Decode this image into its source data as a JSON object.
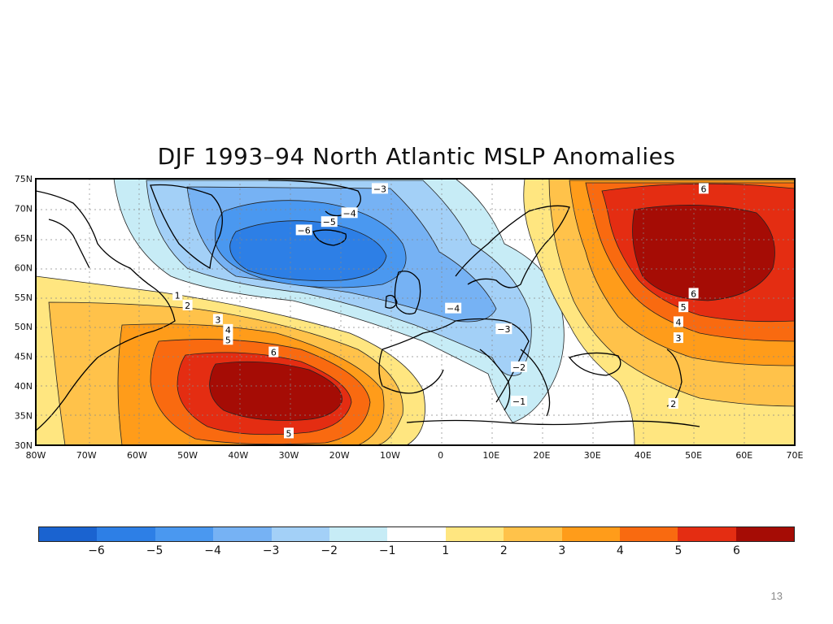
{
  "title": "DJF 1993–94 North Atlantic MSLP Anomalies",
  "lat_labels": [
    "75N",
    "70N",
    "65N",
    "60N",
    "55N",
    "50N",
    "45N",
    "40N",
    "35N",
    "30N"
  ],
  "lon_labels": [
    "80W",
    "70W",
    "60W",
    "50W",
    "40W",
    "30W",
    "20W",
    "10W",
    "0",
    "10E",
    "20E",
    "30E",
    "40E",
    "50E",
    "60E",
    "70E"
  ],
  "contour_labels": [
    {
      "text": "−3",
      "lon": -12,
      "lat": 73.3
    },
    {
      "text": "−4",
      "lon": -18,
      "lat": 69.2
    },
    {
      "text": "−5",
      "lon": -22,
      "lat": 67.7
    },
    {
      "text": "−6",
      "lon": -27,
      "lat": 66.3
    },
    {
      "text": "−4",
      "lon": 2.5,
      "lat": 53.1
    },
    {
      "text": "−3",
      "lon": 12.5,
      "lat": 49.6
    },
    {
      "text": "−2",
      "lon": 15.5,
      "lat": 43.2
    },
    {
      "text": "−1",
      "lon": 15.5,
      "lat": 37.4
    },
    {
      "text": "1",
      "lon": -52,
      "lat": 55.3
    },
    {
      "text": "2",
      "lon": -50,
      "lat": 53.6
    },
    {
      "text": "3",
      "lon": -44,
      "lat": 51.2
    },
    {
      "text": "4",
      "lon": -42,
      "lat": 49.5
    },
    {
      "text": "5",
      "lon": -42,
      "lat": 47.8
    },
    {
      "text": "6",
      "lon": -33,
      "lat": 45.7
    },
    {
      "text": "5",
      "lon": -30,
      "lat": 32.0
    },
    {
      "text": "6",
      "lon": 52,
      "lat": 73.3
    },
    {
      "text": "6",
      "lon": 50,
      "lat": 55.6
    },
    {
      "text": "5",
      "lon": 48,
      "lat": 53.3
    },
    {
      "text": "4",
      "lon": 47,
      "lat": 50.8
    },
    {
      "text": "3",
      "lon": 47,
      "lat": 48.1
    },
    {
      "text": "2",
      "lon": 46,
      "lat": 37.0
    }
  ],
  "colorbar": {
    "colors": [
      "#1a63d0",
      "#2d7fe6",
      "#4a98f0",
      "#76b2f4",
      "#a3d0f7",
      "#c7ecf6",
      "#ffffff",
      "#ffe680",
      "#ffc24a",
      "#ff9c1a",
      "#f96a10",
      "#e42d12",
      "#a50c05"
    ],
    "labels": [
      "−6",
      "−5",
      "−4",
      "−3",
      "−2",
      "−1",
      "1",
      "2",
      "3",
      "4",
      "5",
      "6"
    ]
  },
  "page_number": "13"
}
